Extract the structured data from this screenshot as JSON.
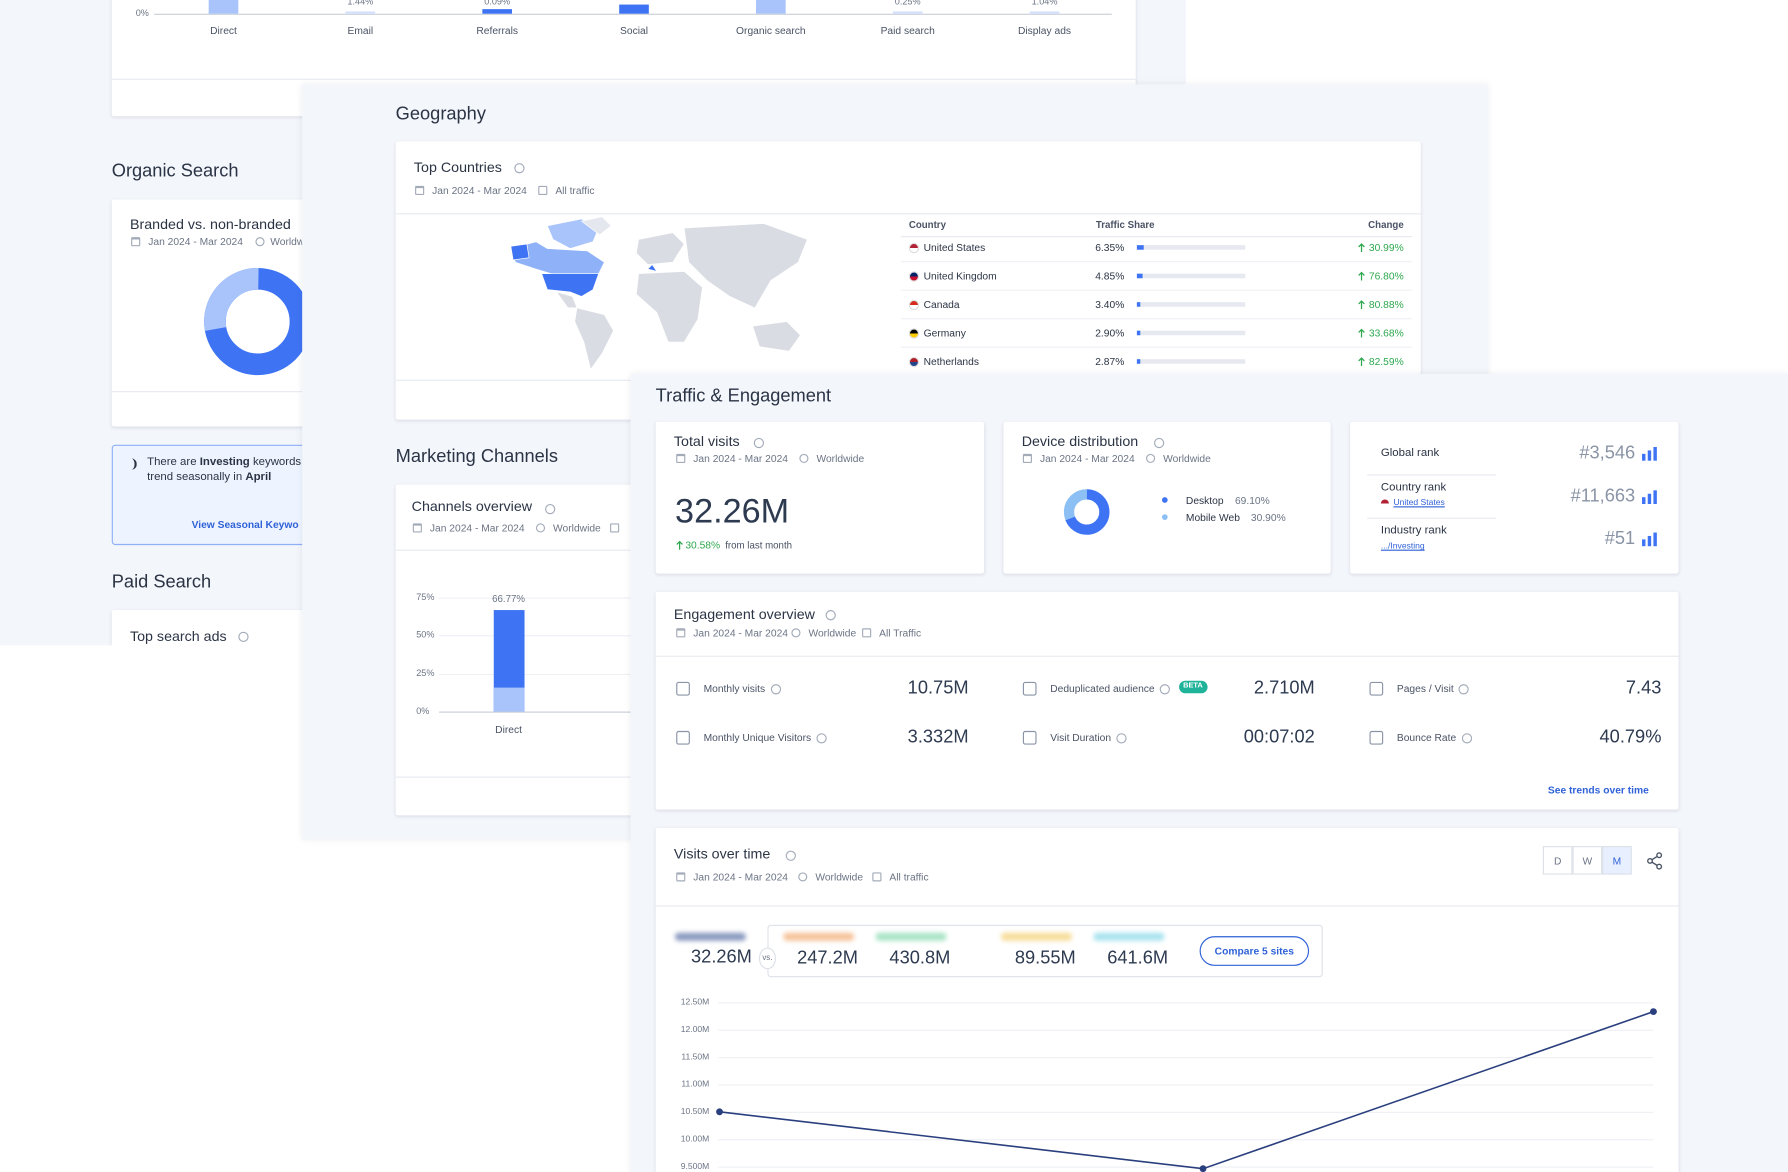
{
  "channels_strip": {
    "categories": [
      "Direct",
      "Email",
      "Referrals",
      "Social",
      "Organic search",
      "Paid search",
      "Display ads"
    ],
    "value_labels": [
      null,
      "1.44%",
      "0.09%",
      null,
      null,
      "0.25%",
      "1.04%"
    ],
    "ytick": "0%"
  },
  "organic_search": {
    "heading": "Organic Search",
    "card_title": "Branded vs. non-branded",
    "date": "Jan 2024 - Mar 2024",
    "scope": "Worldw",
    "insight": {
      "pre": "There are",
      "keyword": "Investing",
      "post": "keywords",
      "line2": "trend seasonally in",
      "month": "April",
      "link": "View Seasonal Keywo"
    }
  },
  "paid_search": {
    "heading": "Paid Search",
    "card_title": "Top search ads"
  },
  "geography": {
    "heading": "Geography",
    "card_title": "Top Countries",
    "date": "Jan 2024 - Mar 2024",
    "scope": "All traffic",
    "columns": [
      "Country",
      "Traffic Share",
      "Change"
    ],
    "rows": [
      {
        "country": "United States",
        "share": 6.35,
        "share_label": "6.35%",
        "change": "30.99%"
      },
      {
        "country": "United Kingdom",
        "share": 4.85,
        "share_label": "4.85%",
        "change": "76.80%"
      },
      {
        "country": "Canada",
        "share": 3.4,
        "share_label": "3.40%",
        "change": "80.88%"
      },
      {
        "country": "Germany",
        "share": 2.9,
        "share_label": "2.90%",
        "change": "33.68%"
      },
      {
        "country": "Netherlands",
        "share": 2.87,
        "share_label": "2.87%",
        "change": "82.59%"
      }
    ]
  },
  "marketing_channels": {
    "heading": "Marketing Channels",
    "card_title": "Channels overview",
    "date": "Jan 2024 - Mar 2024",
    "scope": "Worldwide",
    "chart": {
      "categories": [
        "Direct"
      ],
      "values": [
        66.77
      ],
      "value_labels": [
        "66.77%"
      ],
      "ylim": [
        0,
        75
      ],
      "yticks": [
        {
          "value": 75,
          "label": "75%"
        },
        {
          "value": 50,
          "label": "50%"
        },
        {
          "value": 25,
          "label": "25%"
        },
        {
          "value": 0,
          "label": "0%"
        }
      ]
    }
  },
  "traffic": {
    "heading": "Traffic & Engagement",
    "total_visits": {
      "title": "Total visits",
      "date": "Jan 2024 - Mar 2024",
      "scope": "Worldwide",
      "value": "32.26M",
      "change": "30.58%",
      "change_note": "from last month"
    },
    "device": {
      "title": "Device distribution",
      "date": "Jan 2024 - Mar 2024",
      "scope": "Worldwide",
      "items": [
        {
          "name": "Desktop",
          "value": 69.1,
          "label": "69.10%",
          "color": "#3e74f4"
        },
        {
          "name": "Mobile Web",
          "value": 30.9,
          "label": "30.90%",
          "color": "#8cc0f5"
        }
      ]
    },
    "ranks": [
      {
        "name": "Global rank",
        "value": "#3,546"
      },
      {
        "name": "Country rank",
        "link": "United States",
        "value": "#11,663"
      },
      {
        "name": "Industry rank",
        "link": ".../Investing",
        "value": "#51"
      }
    ],
    "engagement": {
      "title": "Engagement overview",
      "date": "Jan 2024 - Mar 2024",
      "scope": "Worldwide",
      "traffic": "All Traffic",
      "metrics": [
        {
          "name": "Monthly visits",
          "value": "10.75M"
        },
        {
          "name": "Deduplicated audience",
          "badge": "BETA",
          "value": "2.710M"
        },
        {
          "name": "Pages / Visit",
          "value": "7.43"
        },
        {
          "name": "Monthly Unique Visitors",
          "value": "3.332M"
        },
        {
          "name": "Visit Duration",
          "value": "00:07:02"
        },
        {
          "name": "Bounce Rate",
          "value": "40.79%"
        }
      ],
      "link": "See trends over time"
    },
    "visits": {
      "title": "Visits over time",
      "date": "Jan 2024 - Mar 2024",
      "scope": "Worldwide",
      "traffic": "All traffic",
      "granularity": [
        "D",
        "W",
        "M"
      ],
      "selected": "M",
      "compare": {
        "main": "32.26M",
        "vs": "vs.",
        "others": [
          "247.2M",
          "430.8M",
          "89.55M",
          "641.6M"
        ],
        "button": "Compare 5 sites"
      },
      "chart": {
        "ylim": [
          9.5,
          12.5
        ],
        "yticks": [
          {
            "value": 12.5,
            "label": "12.50M"
          },
          {
            "value": 12,
            "label": "12.00M"
          },
          {
            "value": 11.5,
            "label": "11.50M"
          },
          {
            "value": 11,
            "label": "11.00M"
          },
          {
            "value": 10.5,
            "label": "10.50M"
          },
          {
            "value": 10,
            "label": "10.00M"
          },
          {
            "value": 9.5,
            "label": "9.500M"
          }
        ],
        "values": [
          10.5,
          9.46,
          12.33
        ],
        "color": "#2a3f7e"
      }
    }
  }
}
